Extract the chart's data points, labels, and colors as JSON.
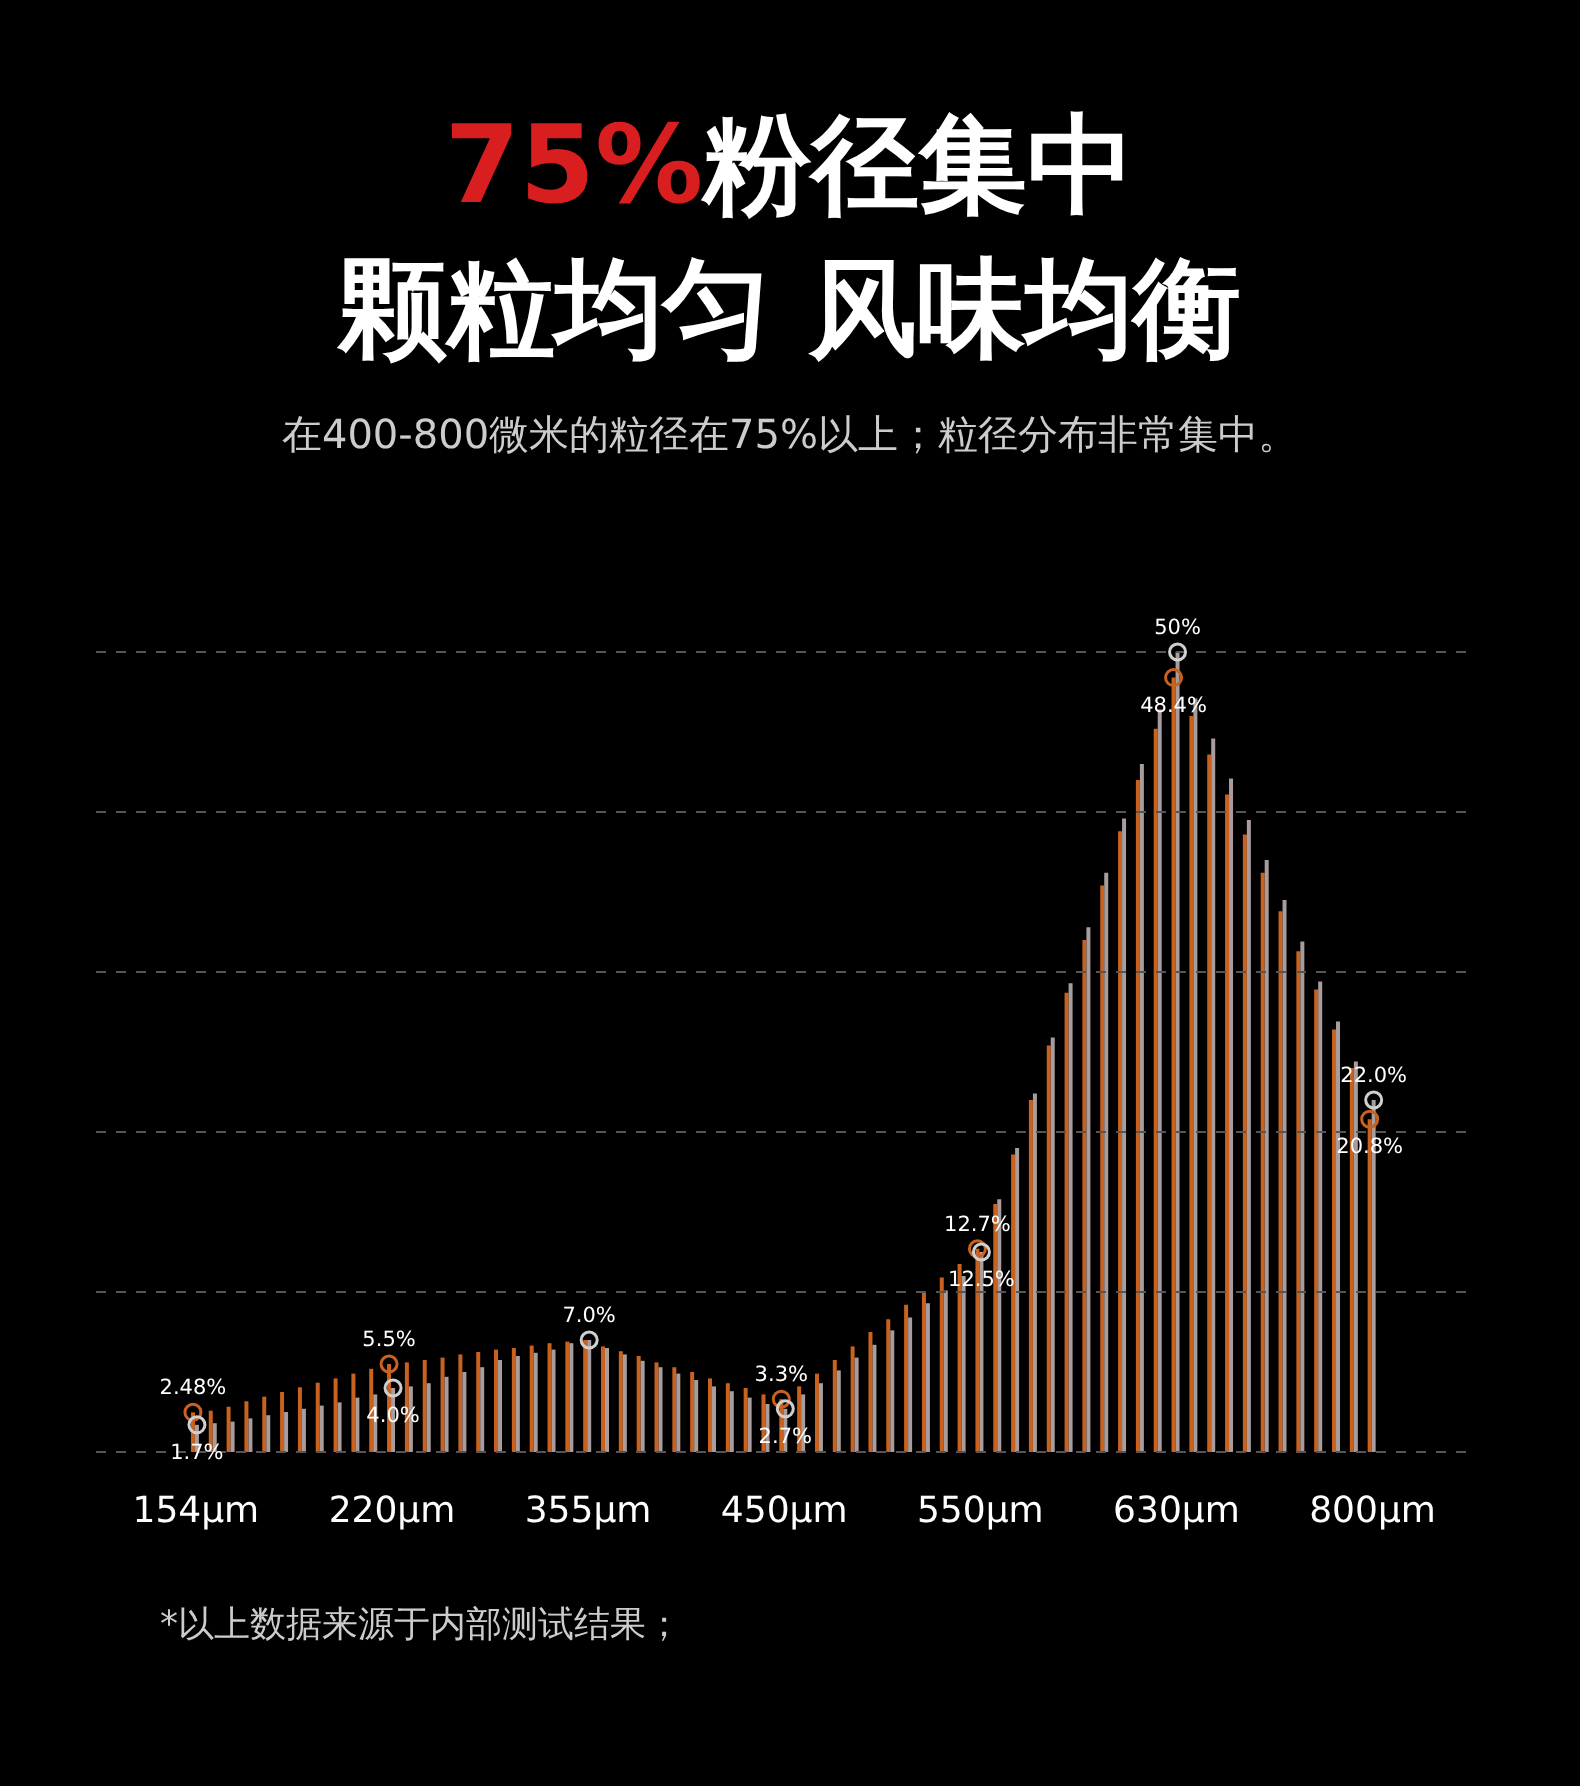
{
  "chart_data": {
    "type": "bar",
    "title": "75%粉径集中",
    "subtitle": "颗粒均匀 风味均衡",
    "annotations": [
      "在400-800微米的粒径在75%以上；粒径分布非常集中。",
      "*以上数据来源于内部测试结果；"
    ],
    "categories": [
      "154μm",
      null,
      null,
      null,
      null,
      null,
      null,
      null,
      null,
      null,
      null,
      "220μm",
      null,
      null,
      null,
      null,
      null,
      null,
      null,
      null,
      null,
      null,
      "355μm",
      null,
      null,
      null,
      null,
      null,
      null,
      null,
      null,
      null,
      null,
      "450μm",
      null,
      null,
      null,
      null,
      null,
      null,
      null,
      null,
      null,
      null,
      "550μm",
      null,
      null,
      null,
      null,
      null,
      null,
      null,
      null,
      null,
      null,
      "630μm",
      null,
      null,
      null,
      null,
      null,
      null,
      null,
      null,
      null,
      null,
      "800μm"
    ],
    "series": [
      {
        "color": "#c8621e",
        "values": [
          2.48,
          2.58,
          2.83,
          3.17,
          3.46,
          3.75,
          4.04,
          4.33,
          4.6,
          4.9,
          5.2,
          5.5,
          5.6,
          5.75,
          5.9,
          6.1,
          6.25,
          6.4,
          6.5,
          6.65,
          6.8,
          6.9,
          7.0,
          6.6,
          6.3,
          6.0,
          5.6,
          5.3,
          5.0,
          4.6,
          4.3,
          4.0,
          3.6,
          3.3,
          4.1,
          4.9,
          5.75,
          6.6,
          7.5,
          8.3,
          9.2,
          10.0,
          10.9,
          11.75,
          12.7,
          15.5,
          18.6,
          22.0,
          25.4,
          28.7,
          32.0,
          35.4,
          38.8,
          42.0,
          45.2,
          48.4,
          46.0,
          43.6,
          41.1,
          38.6,
          36.2,
          33.8,
          31.3,
          28.9,
          26.4,
          24.0,
          20.8
        ],
        "value_labels": [
          "2.48%",
          null,
          null,
          null,
          null,
          null,
          null,
          null,
          null,
          null,
          null,
          "5.5%",
          null,
          null,
          null,
          null,
          null,
          null,
          null,
          null,
          null,
          null,
          null,
          null,
          null,
          null,
          null,
          null,
          null,
          null,
          null,
          null,
          null,
          "3.3%",
          null,
          null,
          null,
          null,
          null,
          null,
          null,
          null,
          null,
          null,
          "12.7%",
          null,
          null,
          null,
          null,
          null,
          null,
          null,
          null,
          null,
          null,
          "48.4%",
          null,
          null,
          null,
          null,
          null,
          null,
          null,
          null,
          null,
          null,
          "20.8%"
        ]
      },
      {
        "color": "#a89c9c",
        "values": [
          1.7,
          1.8,
          1.9,
          2.1,
          2.3,
          2.5,
          2.7,
          2.9,
          3.1,
          3.4,
          3.6,
          4.0,
          4.1,
          4.3,
          4.7,
          5.0,
          5.3,
          5.75,
          6.0,
          6.2,
          6.4,
          6.8,
          7.0,
          6.5,
          6.1,
          5.7,
          5.3,
          4.9,
          4.5,
          4.1,
          3.8,
          3.4,
          3.0,
          2.7,
          3.6,
          4.3,
          5.1,
          5.9,
          6.7,
          7.6,
          8.4,
          9.3,
          10.1,
          11.0,
          12.5,
          15.8,
          19.0,
          22.4,
          25.9,
          29.3,
          32.8,
          36.2,
          39.6,
          43.0,
          46.4,
          50,
          47.1,
          44.6,
          42.1,
          39.5,
          37.0,
          34.5,
          31.9,
          29.4,
          26.9,
          24.4,
          22.0
        ],
        "value_labels": [
          "1.7%",
          null,
          null,
          null,
          null,
          null,
          null,
          null,
          null,
          null,
          null,
          "4.0%",
          null,
          null,
          null,
          null,
          null,
          null,
          null,
          null,
          null,
          null,
          "7.0%",
          null,
          null,
          null,
          null,
          null,
          null,
          null,
          null,
          null,
          null,
          "2.7%",
          null,
          null,
          null,
          null,
          null,
          null,
          null,
          null,
          null,
          null,
          "12.5%",
          null,
          null,
          null,
          null,
          null,
          null,
          null,
          null,
          null,
          null,
          "50%",
          null,
          null,
          null,
          null,
          null,
          null,
          null,
          null,
          null,
          null,
          "22.0%"
        ]
      }
    ],
    "ylim": [
      0,
      50
    ],
    "grid": "y",
    "tick_labels": "x",
    "marker": "circle"
  }
}
